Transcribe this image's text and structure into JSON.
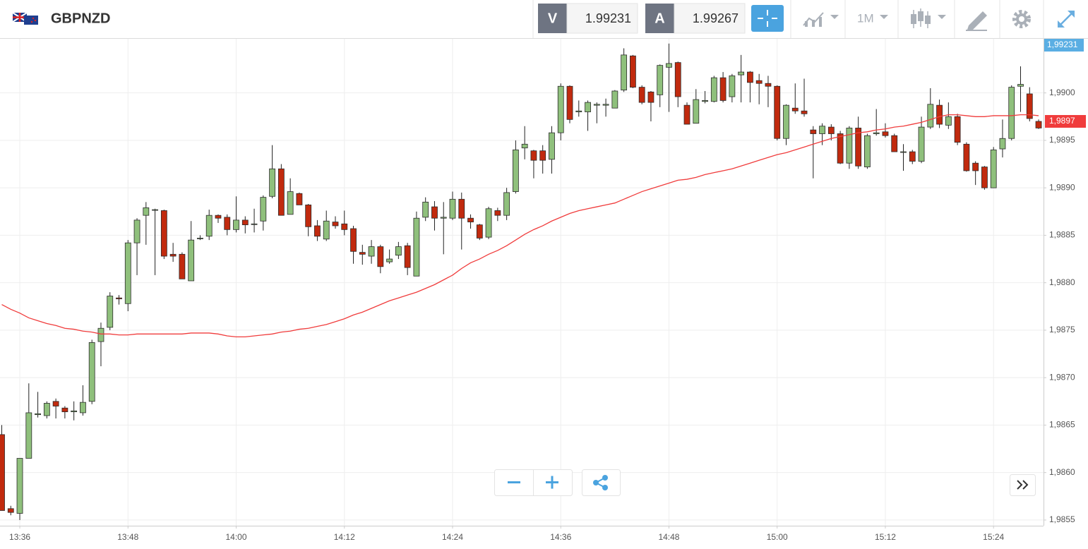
{
  "header": {
    "symbol": "GBPNZD",
    "sell_label": "V",
    "sell_price": "1.99231",
    "buy_label": "A",
    "buy_price": "1.99267",
    "timeframe": "1M"
  },
  "chart_data": {
    "type": "candlestick",
    "x": [
      "13:34",
      "13:35",
      "13:36",
      "13:37",
      "13:38",
      "13:39",
      "13:40",
      "13:41",
      "13:42",
      "13:43",
      "13:44",
      "13:45",
      "13:46",
      "13:47",
      "13:48",
      "13:49",
      "13:50",
      "13:51",
      "13:52",
      "13:53",
      "13:54",
      "13:55",
      "13:56",
      "13:57",
      "13:58",
      "13:59",
      "14:00",
      "14:01",
      "14:02",
      "14:03",
      "14:04",
      "14:05",
      "14:06",
      "14:07",
      "14:08",
      "14:09",
      "14:10",
      "14:11",
      "14:12",
      "14:13",
      "14:14",
      "14:15",
      "14:16",
      "14:17",
      "14:18",
      "14:19",
      "14:20",
      "14:21",
      "14:22",
      "14:23",
      "14:24",
      "14:25",
      "14:26",
      "14:27",
      "14:28",
      "14:29",
      "14:30",
      "14:31",
      "14:32",
      "14:33",
      "14:34",
      "14:35",
      "14:36",
      "14:37",
      "14:38",
      "14:39",
      "14:40",
      "14:41",
      "14:42",
      "14:43",
      "14:44",
      "14:45",
      "14:46",
      "14:47",
      "14:48",
      "14:49",
      "14:50",
      "14:51",
      "14:52",
      "14:53",
      "14:54",
      "14:55",
      "14:56",
      "14:57",
      "14:58",
      "14:59",
      "15:00",
      "15:01",
      "15:02",
      "15:03",
      "15:04",
      "15:05",
      "15:06",
      "15:07",
      "15:08",
      "15:09",
      "15:10",
      "15:11",
      "15:12",
      "15:13",
      "15:14",
      "15:15",
      "15:16",
      "15:17",
      "15:18",
      "15:19",
      "15:20",
      "15:21",
      "15:22",
      "15:23",
      "15:24",
      "15:25",
      "15:26",
      "15:27",
      "15:28",
      "15:29"
    ],
    "open": [
      1.9864,
      1.98562,
      1.98557,
      1.98615,
      1.98661,
      1.9866,
      1.98675,
      1.98668,
      1.98664,
      1.98663,
      1.98675,
      1.98738,
      1.98753,
      1.98784,
      1.98778,
      1.98842,
      1.98871,
      1.98877,
      1.98876,
      1.9883,
      1.9883,
      1.98802,
      1.98847,
      1.98849,
      1.98871,
      1.98869,
      1.98856,
      1.98866,
      1.98862,
      1.98865,
      1.98891,
      1.9892,
      1.98872,
      1.98894,
      1.98882,
      1.9886,
      1.98846,
      1.98864,
      1.98862,
      1.98857,
      1.98832,
      1.98828,
      1.98838,
      1.98822,
      1.98829,
      1.98839,
      1.98807,
      1.98869,
      1.9888,
      1.98868,
      1.98868,
      1.98888,
      1.98868,
      1.98861,
      1.98848,
      1.98876,
      1.98871,
      1.98896,
      1.98942,
      1.98939,
      1.98939,
      1.9893,
      1.98958,
      1.99007,
      1.9898,
      1.9898,
      1.98987,
      1.98987,
      1.98984,
      1.99003,
      1.99039,
      1.99006,
      1.99001,
      1.98998,
      1.99027,
      1.99032,
      1.98987,
      1.98968,
      1.98991,
      1.98991,
      1.99016,
      1.98996,
      1.99019,
      1.99022,
      1.99013,
      1.9901,
      1.99007,
      1.98952,
      1.98984,
      1.98981,
      1.98961,
      1.98957,
      1.98964,
      1.98957,
      1.98926,
      1.98963,
      1.98922,
      1.98957,
      1.98959,
      1.98955,
      1.98938,
      1.98938,
      1.98928,
      1.98964,
      1.98987,
      1.98966,
      1.98975,
      1.98946,
      1.98926,
      1.98922,
      1.989,
      1.98941,
      1.98952,
      1.99007,
      1.98999,
      1.9897
    ],
    "high": [
      1.9865,
      1.98565,
      1.98615,
      1.98694,
      1.98685,
      1.98675,
      1.98678,
      1.9867,
      1.98675,
      1.98692,
      1.9874,
      1.98758,
      1.9879,
      1.98787,
      1.98845,
      1.98868,
      1.98885,
      1.98878,
      1.98877,
      1.98842,
      1.98832,
      1.98865,
      1.9885,
      1.98877,
      1.98872,
      1.98872,
      1.98891,
      1.9887,
      1.98878,
      1.98892,
      1.98945,
      1.98925,
      1.9891,
      1.98895,
      1.98883,
      1.98866,
      1.98876,
      1.9887,
      1.98876,
      1.9886,
      1.9884,
      1.98845,
      1.9884,
      1.98835,
      1.98843,
      1.98842,
      1.98875,
      1.9889,
      1.98886,
      1.98885,
      1.98896,
      1.98895,
      1.98872,
      1.98862,
      1.9888,
      1.98879,
      1.989,
      1.9895,
      1.98965,
      1.9894,
      1.98945,
      1.98965,
      1.9901,
      1.99008,
      1.98992,
      1.98992,
      1.9899,
      1.98994,
      1.99003,
      1.99047,
      1.9904,
      1.99008,
      1.99002,
      1.9903,
      1.99052,
      1.99033,
      1.9899,
      1.99004,
      1.99002,
      1.99018,
      1.99022,
      1.9902,
      1.9904,
      1.99023,
      1.9902,
      1.99018,
      1.99008,
      1.98988,
      1.9901,
      1.99015,
      1.98965,
      1.98968,
      1.98967,
      1.9896,
      1.98965,
      1.98975,
      1.98957,
      1.98983,
      1.98968,
      1.98957,
      1.98946,
      1.9894,
      1.98975,
      1.99005,
      1.98993,
      1.9899,
      1.98978,
      1.98948,
      1.98928,
      1.98923,
      1.98943,
      1.98972,
      1.99008,
      1.99028,
      1.99006,
      1.98972
    ],
    "low": [
      1.9856,
      1.98555,
      1.9855,
      1.98615,
      1.98658,
      1.98657,
      1.98657,
      1.98657,
      1.98655,
      1.9866,
      1.98672,
      1.98712,
      1.9875,
      1.98777,
      1.9877,
      1.98808,
      1.9884,
      1.98808,
      1.98825,
      1.98822,
      1.98804,
      1.98802,
      1.98845,
      1.98845,
      1.98863,
      1.9885,
      1.98853,
      1.98852,
      1.98853,
      1.98855,
      1.98889,
      1.98871,
      1.98872,
      1.98882,
      1.98849,
      1.98844,
      1.98844,
      1.98857,
      1.9885,
      1.9882,
      1.98819,
      1.9882,
      1.9881,
      1.9882,
      1.98825,
      1.98808,
      1.98807,
      1.98865,
      1.98855,
      1.9883,
      1.98866,
      1.98835,
      1.98857,
      1.98845,
      1.98846,
      1.98865,
      1.98866,
      1.98894,
      1.9893,
      1.9891,
      1.98915,
      1.98915,
      1.9895,
      1.98968,
      1.98975,
      1.9896,
      1.98968,
      1.98975,
      1.98984,
      1.99001,
      1.99005,
      1.98988,
      1.9897,
      1.98985,
      1.9898,
      1.98985,
      1.98967,
      1.98968,
      1.98989,
      1.9899,
      1.9899,
      1.9899,
      1.9899,
      1.9899,
      1.98988,
      1.98985,
      1.9895,
      1.98945,
      1.98978,
      1.98975,
      1.9891,
      1.98945,
      1.9895,
      1.98925,
      1.9892,
      1.9892,
      1.9892,
      1.98955,
      1.98953,
      1.98938,
      1.98918,
      1.98925,
      1.98926,
      1.98962,
      1.98963,
      1.98962,
      1.98945,
      1.98917,
      1.98903,
      1.98898,
      1.989,
      1.98932,
      1.9895,
      1.9898,
      1.9897,
      1.98962
    ],
    "close": [
      1.9856,
      1.98558,
      1.98615,
      1.98663,
      1.98662,
      1.98673,
      1.9867,
      1.98664,
      1.98665,
      1.98674,
      1.98737,
      1.98752,
      1.98786,
      1.98783,
      1.98842,
      1.98866,
      1.98879,
      1.98877,
      1.98828,
      1.98828,
      1.98804,
      1.98845,
      1.98847,
      1.98871,
      1.98868,
      1.98856,
      1.98866,
      1.98861,
      1.98862,
      1.9889,
      1.9892,
      1.98871,
      1.98896,
      1.98882,
      1.98859,
      1.98849,
      1.98865,
      1.9886,
      1.98856,
      1.98833,
      1.9883,
      1.98838,
      1.98817,
      1.98825,
      1.98838,
      1.98816,
      1.98868,
      1.98885,
      1.98868,
      1.98869,
      1.98888,
      1.98868,
      1.98864,
      1.98847,
      1.98878,
      1.98871,
      1.98895,
      1.9894,
      1.98946,
      1.98929,
      1.98929,
      1.98958,
      1.99007,
      1.98972,
      1.98981,
      1.9899,
      1.98988,
      1.98988,
      1.99002,
      1.9904,
      1.99006,
      1.9899,
      1.9899,
      1.99029,
      1.99031,
      1.98996,
      1.98967,
      1.98993,
      1.98992,
      1.99016,
      1.98992,
      1.99018,
      1.99022,
      1.99011,
      1.9901,
      1.99007,
      1.98952,
      1.98987,
      1.98981,
      1.98978,
      1.98957,
      1.98965,
      1.98957,
      1.98926,
      1.98963,
      1.98923,
      1.98955,
      1.98958,
      1.98955,
      1.98938,
      1.98938,
      1.98928,
      1.98964,
      1.98988,
      1.98967,
      1.98975,
      1.98948,
      1.98918,
      1.98918,
      1.989,
      1.9894,
      1.98952,
      1.99006,
      1.99009,
      1.98973,
      1.98963
    ],
    "up_color": "#8fc07c",
    "down_color": "#c12a0e",
    "ma": {
      "color": "#f03c3c",
      "values": [
        1.98777,
        1.98772,
        1.98768,
        1.98763,
        1.9876,
        1.98757,
        1.98755,
        1.98752,
        1.98751,
        1.98749,
        1.98748,
        1.98746,
        1.98746,
        1.98745,
        1.98745,
        1.98746,
        1.98746,
        1.98746,
        1.98746,
        1.98746,
        1.98746,
        1.98747,
        1.98747,
        1.98747,
        1.98746,
        1.98744,
        1.98743,
        1.98743,
        1.98744,
        1.98745,
        1.98746,
        1.98748,
        1.98749,
        1.98751,
        1.98752,
        1.98754,
        1.98756,
        1.98759,
        1.98762,
        1.98766,
        1.98769,
        1.98773,
        1.98777,
        1.98781,
        1.98784,
        1.98787,
        1.9879,
        1.98794,
        1.98798,
        1.98803,
        1.98808,
        1.98815,
        1.98821,
        1.98825,
        1.9883,
        1.98834,
        1.98839,
        1.98845,
        1.98851,
        1.98856,
        1.9886,
        1.98865,
        1.98869,
        1.98873,
        1.98876,
        1.98878,
        1.9888,
        1.98882,
        1.98884,
        1.98888,
        1.98892,
        1.98896,
        1.98899,
        1.98902,
        1.98905,
        1.98908,
        1.98909,
        1.98911,
        1.98914,
        1.98916,
        1.98918,
        1.9892,
        1.98923,
        1.98926,
        1.98929,
        1.98932,
        1.98935,
        1.98937,
        1.9894,
        1.98943,
        1.98946,
        1.98949,
        1.98952,
        1.98954,
        1.98956,
        1.98958,
        1.98959,
        1.98961,
        1.98962,
        1.98964,
        1.98965,
        1.98967,
        1.98969,
        1.98972,
        1.98975,
        1.98977,
        1.98977,
        1.98976,
        1.98975,
        1.98975,
        1.98976,
        1.98976,
        1.98976,
        1.98977,
        1.98977,
        1.98976
      ]
    },
    "ma_label": {
      "value": 1.9897,
      "label": "1,9897"
    },
    "last_price": {
      "value": 1.99231,
      "label": "1,99231"
    },
    "ylim": [
      1.98544,
      1.99057
    ],
    "yticks": [
      {
        "value": 1.9855,
        "label": "1,9855"
      },
      {
        "value": 1.986,
        "label": "1,9860"
      },
      {
        "value": 1.9865,
        "label": "1,9865"
      },
      {
        "value": 1.987,
        "label": "1,9870"
      },
      {
        "value": 1.9875,
        "label": "1,9875"
      },
      {
        "value": 1.988,
        "label": "1,9880"
      },
      {
        "value": 1.9885,
        "label": "1,9885"
      },
      {
        "value": 1.989,
        "label": "1,9890"
      },
      {
        "value": 1.9895,
        "label": "1,9895"
      },
      {
        "value": 1.99,
        "label": "1,9900"
      }
    ],
    "xticks": [
      "13:36",
      "13:48",
      "14:00",
      "14:12",
      "14:24",
      "14:36",
      "14:48",
      "15:00",
      "15:12",
      "15:24"
    ],
    "grid": true
  }
}
